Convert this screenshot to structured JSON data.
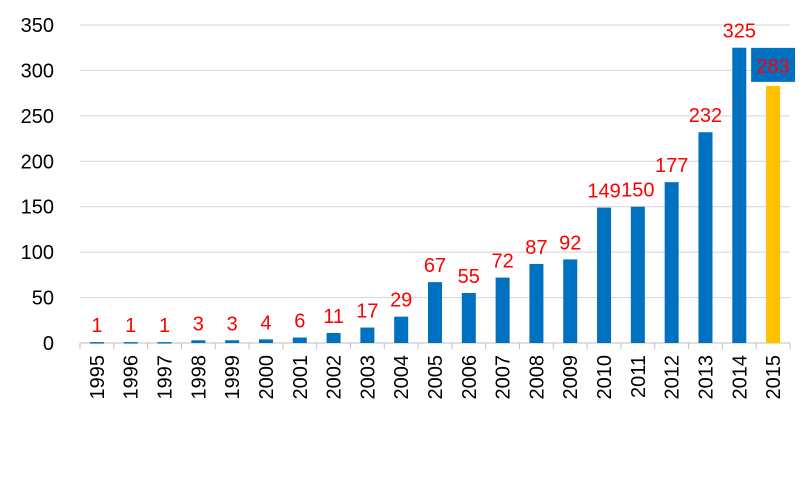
{
  "chart_data": {
    "type": "bar",
    "title": "",
    "xlabel": "",
    "ylabel": "",
    "categories": [
      "1995",
      "1996",
      "1997",
      "1998",
      "1999",
      "2000",
      "2001",
      "2002",
      "2003",
      "2004",
      "2005",
      "2006",
      "2007",
      "2008",
      "2009",
      "2010",
      "2011",
      "2012",
      "2013",
      "2014",
      "2015"
    ],
    "values": [
      1,
      1,
      1,
      3,
      3,
      4,
      6,
      11,
      17,
      29,
      67,
      55,
      72,
      87,
      92,
      149,
      150,
      177,
      232,
      325,
      283
    ],
    "ylim": [
      0,
      350
    ],
    "yticks": [
      0,
      50,
      100,
      150,
      200,
      250,
      300,
      350
    ],
    "grid": true,
    "legend": "none",
    "colors": {
      "bar": "#0070c0",
      "highlight_bar": "#ffc000",
      "highlight_index": 20,
      "data_label": "#ff0000",
      "highlight_label_box": "#0070c0"
    }
  }
}
